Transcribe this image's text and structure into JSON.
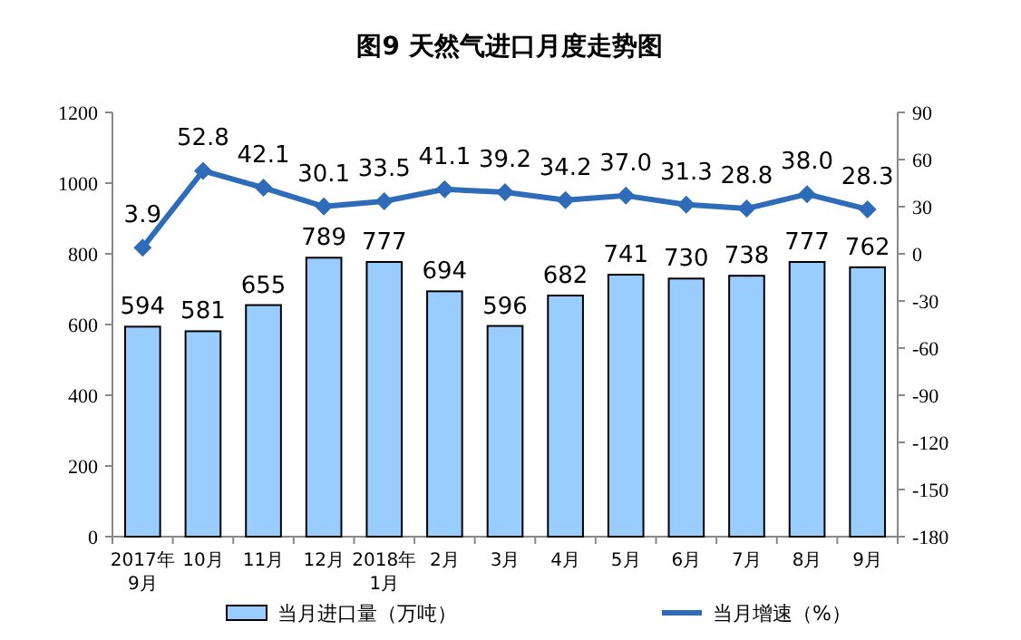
{
  "chart_data": {
    "type": "bar",
    "title": "图9  天然气进口月度走势图",
    "categories": [
      "2017年9月",
      "10月",
      "11月",
      "12月",
      "2018年1月",
      "2月",
      "3月",
      "4月",
      "5月",
      "6月",
      "7月",
      "8月",
      "9月"
    ],
    "series": [
      {
        "name": "当月进口量（万吨）",
        "color": "#99ccff",
        "values": [
          594,
          581,
          655,
          789,
          777,
          694,
          596,
          682,
          741,
          730,
          738,
          777,
          762
        ],
        "value_labels": [
          "594",
          "581",
          "655",
          "789",
          "777",
          "694",
          "596",
          "682",
          "741",
          "730",
          "738",
          "777",
          "762"
        ]
      },
      {
        "name": "当月增速（%）",
        "type": "line",
        "axis": "y2",
        "color": "#2e6bb8",
        "marker": "diamond",
        "values": [
          3.9,
          52.8,
          42.1,
          30.1,
          33.5,
          41.1,
          39.2,
          34.2,
          37.0,
          31.3,
          28.8,
          38.0,
          28.3
        ],
        "value_labels": [
          "3.9",
          "52.8",
          "42.1",
          "30.1",
          "33.5",
          "41.1",
          "39.2",
          "34.2",
          "37.0",
          "31.3",
          "28.8",
          "38.0",
          "28.3"
        ]
      }
    ],
    "ylim": [
      0,
      1200
    ],
    "yticks": [
      0,
      200,
      400,
      600,
      800,
      1000,
      1200
    ],
    "y2lim": [
      -180,
      90
    ],
    "y2ticks": [
      -180,
      -150,
      -120,
      -90,
      -60,
      -30,
      0,
      30,
      60,
      90
    ],
    "legend": "bottom"
  }
}
